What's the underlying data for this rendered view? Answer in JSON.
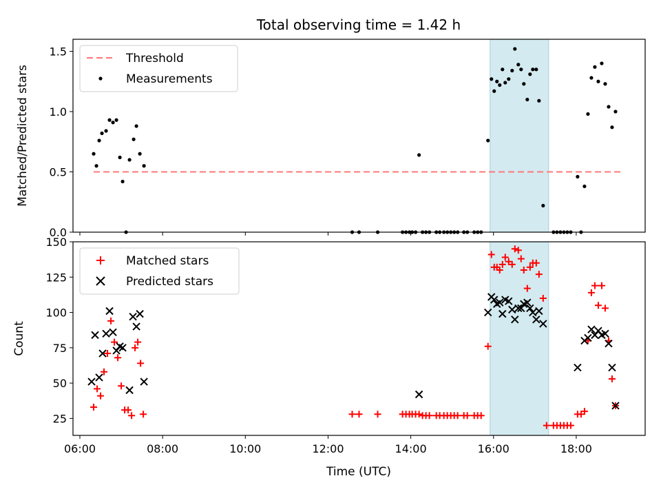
{
  "title": "Total observing time = 1.42 h",
  "xlabel": "Time (UTC)",
  "x_ticks": [
    "06:00",
    "08:00",
    "10:00",
    "12:00",
    "14:00",
    "16:00",
    "18:00"
  ],
  "colors": {
    "threshold": "#ff7777",
    "measurement": "#000000",
    "matched": "#ff0000",
    "predicted": "#000000",
    "highlight": "#d3eaf0"
  },
  "chart_data": [
    {
      "type": "scatter",
      "panel": "top",
      "ylabel": "Matched/Predicted stars",
      "ylim": [
        0,
        1.6
      ],
      "y_ticks": [
        "0.0",
        "0.5",
        "1.0",
        "1.5"
      ],
      "xlim": [
        "05:50",
        "19:40"
      ],
      "highlight_span": [
        "15:55",
        "17:20"
      ],
      "legend": {
        "position": "top-left",
        "entries": [
          "Threshold",
          "Measurements"
        ]
      },
      "threshold": {
        "name": "Threshold",
        "y": 0.5,
        "x_range": [
          "06:20",
          "19:05"
        ]
      },
      "series": [
        {
          "name": "Measurements",
          "points": [
            [
              "06:20",
              0.65
            ],
            [
              "06:24",
              0.55
            ],
            [
              "06:28",
              0.76
            ],
            [
              "06:32",
              0.82
            ],
            [
              "06:38",
              0.84
            ],
            [
              "06:43",
              0.93
            ],
            [
              "06:48",
              0.91
            ],
            [
              "06:53",
              0.93
            ],
            [
              "06:58",
              0.62
            ],
            [
              "07:02",
              0.42
            ],
            [
              "07:07",
              0.0
            ],
            [
              "07:12",
              0.6
            ],
            [
              "07:18",
              0.77
            ],
            [
              "07:22",
              0.88
            ],
            [
              "07:27",
              0.65
            ],
            [
              "07:33",
              0.55
            ],
            [
              "12:35",
              0.0
            ],
            [
              "12:45",
              0.0
            ],
            [
              "13:12",
              0.0
            ],
            [
              "13:48",
              0.0
            ],
            [
              "13:53",
              0.0
            ],
            [
              "13:58",
              0.0
            ],
            [
              "14:02",
              0.0
            ],
            [
              "14:07",
              0.0
            ],
            [
              "14:12",
              0.64
            ],
            [
              "14:17",
              0.0
            ],
            [
              "14:22",
              0.0
            ],
            [
              "14:27",
              0.0
            ],
            [
              "14:37",
              0.0
            ],
            [
              "14:42",
              0.0
            ],
            [
              "14:48",
              0.0
            ],
            [
              "14:53",
              0.0
            ],
            [
              "14:58",
              0.0
            ],
            [
              "15:03",
              0.0
            ],
            [
              "15:08",
              0.0
            ],
            [
              "15:17",
              0.0
            ],
            [
              "15:22",
              0.0
            ],
            [
              "15:32",
              0.0
            ],
            [
              "15:37",
              0.0
            ],
            [
              "15:42",
              0.0
            ],
            [
              "15:52",
              0.76
            ],
            [
              "15:57",
              1.27
            ],
            [
              "16:01",
              1.17
            ],
            [
              "16:05",
              1.25
            ],
            [
              "16:09",
              1.22
            ],
            [
              "16:13",
              1.35
            ],
            [
              "16:17",
              1.24
            ],
            [
              "16:22",
              1.27
            ],
            [
              "16:27",
              1.34
            ],
            [
              "16:31",
              1.52
            ],
            [
              "16:36",
              1.39
            ],
            [
              "16:40",
              1.35
            ],
            [
              "16:44",
              1.23
            ],
            [
              "16:49",
              1.1
            ],
            [
              "16:53",
              1.31
            ],
            [
              "16:57",
              1.35
            ],
            [
              "17:02",
              1.35
            ],
            [
              "17:06",
              1.09
            ],
            [
              "17:12",
              0.22
            ],
            [
              "17:27",
              0.0
            ],
            [
              "17:32",
              0.0
            ],
            [
              "17:37",
              0.0
            ],
            [
              "17:42",
              0.0
            ],
            [
              "17:47",
              0.0
            ],
            [
              "17:52",
              0.0
            ],
            [
              "18:02",
              0.46
            ],
            [
              "18:07",
              0.0
            ],
            [
              "18:12",
              0.38
            ],
            [
              "18:17",
              0.98
            ],
            [
              "18:22",
              1.28
            ],
            [
              "18:27",
              1.37
            ],
            [
              "18:32",
              1.25
            ],
            [
              "18:37",
              1.4
            ],
            [
              "18:42",
              1.23
            ],
            [
              "18:47",
              1.04
            ],
            [
              "18:52",
              0.87
            ],
            [
              "18:57",
              1.0
            ]
          ]
        }
      ]
    },
    {
      "type": "scatter",
      "panel": "bottom",
      "ylabel": "Count",
      "ylim": [
        13,
        150
      ],
      "y_ticks": [
        "25",
        "50",
        "75",
        "100",
        "125",
        "150"
      ],
      "xlim": [
        "05:50",
        "19:40"
      ],
      "highlight_span": [
        "15:55",
        "17:20"
      ],
      "legend": {
        "position": "top-left",
        "entries": [
          "Matched stars",
          "Predicted stars"
        ]
      },
      "series": [
        {
          "name": "Matched stars",
          "marker": "plus",
          "points": [
            [
              "06:20",
              33
            ],
            [
              "06:25",
              46
            ],
            [
              "06:30",
              41
            ],
            [
              "06:35",
              58
            ],
            [
              "06:40",
              71
            ],
            [
              "06:45",
              94
            ],
            [
              "06:50",
              79
            ],
            [
              "06:55",
              68
            ],
            [
              "07:00",
              48
            ],
            [
              "07:05",
              31
            ],
            [
              "07:10",
              31
            ],
            [
              "07:15",
              27
            ],
            [
              "07:20",
              75
            ],
            [
              "07:24",
              79
            ],
            [
              "07:28",
              64
            ],
            [
              "07:32",
              28
            ],
            [
              "12:35",
              28
            ],
            [
              "12:45",
              28
            ],
            [
              "13:12",
              28
            ],
            [
              "13:48",
              28
            ],
            [
              "13:53",
              28
            ],
            [
              "13:58",
              28
            ],
            [
              "14:02",
              28
            ],
            [
              "14:07",
              28
            ],
            [
              "14:12",
              28
            ],
            [
              "14:17",
              27
            ],
            [
              "14:22",
              27
            ],
            [
              "14:27",
              27
            ],
            [
              "14:37",
              27
            ],
            [
              "14:42",
              27
            ],
            [
              "14:48",
              27
            ],
            [
              "14:53",
              27
            ],
            [
              "14:58",
              27
            ],
            [
              "15:03",
              27
            ],
            [
              "15:08",
              27
            ],
            [
              "15:17",
              27
            ],
            [
              "15:22",
              27
            ],
            [
              "15:32",
              27
            ],
            [
              "15:37",
              27
            ],
            [
              "15:42",
              27
            ],
            [
              "15:52",
              76
            ],
            [
              "15:57",
              141
            ],
            [
              "16:01",
              132
            ],
            [
              "16:05",
              132
            ],
            [
              "16:09",
              130
            ],
            [
              "16:13",
              134
            ],
            [
              "16:17",
              139
            ],
            [
              "16:22",
              136
            ],
            [
              "16:27",
              134
            ],
            [
              "16:31",
              145
            ],
            [
              "16:36",
              144
            ],
            [
              "16:40",
              138
            ],
            [
              "16:44",
              130
            ],
            [
              "16:49",
              117
            ],
            [
              "16:53",
              132
            ],
            [
              "16:57",
              135
            ],
            [
              "17:02",
              135
            ],
            [
              "17:06",
              127
            ],
            [
              "17:12",
              110
            ],
            [
              "17:17",
              20
            ],
            [
              "17:27",
              20
            ],
            [
              "17:32",
              20
            ],
            [
              "17:37",
              20
            ],
            [
              "17:42",
              20
            ],
            [
              "17:47",
              20
            ],
            [
              "17:52",
              20
            ],
            [
              "18:02",
              28
            ],
            [
              "18:07",
              28
            ],
            [
              "18:12",
              30
            ],
            [
              "18:17",
              80
            ],
            [
              "18:22",
              114
            ],
            [
              "18:27",
              119
            ],
            [
              "18:32",
              105
            ],
            [
              "18:37",
              119
            ],
            [
              "18:42",
              103
            ],
            [
              "18:47",
              80
            ],
            [
              "18:52",
              53
            ],
            [
              "18:57",
              34
            ]
          ]
        },
        {
          "name": "Predicted stars",
          "marker": "x",
          "points": [
            [
              "06:17",
              51
            ],
            [
              "06:22",
              84
            ],
            [
              "06:28",
              54
            ],
            [
              "06:33",
              71
            ],
            [
              "06:38",
              85
            ],
            [
              "06:43",
              101
            ],
            [
              "06:48",
              86
            ],
            [
              "06:53",
              73
            ],
            [
              "06:58",
              76
            ],
            [
              "07:02",
              75
            ],
            [
              "07:12",
              45
            ],
            [
              "07:17",
              97
            ],
            [
              "07:22",
              90
            ],
            [
              "07:27",
              99
            ],
            [
              "07:33",
              51
            ],
            [
              "14:12",
              42
            ],
            [
              "15:52",
              100
            ],
            [
              "15:57",
              111
            ],
            [
              "16:01",
              109
            ],
            [
              "16:05",
              106
            ],
            [
              "16:09",
              107
            ],
            [
              "16:13",
              99
            ],
            [
              "16:17",
              109
            ],
            [
              "16:22",
              108
            ],
            [
              "16:27",
              102
            ],
            [
              "16:31",
              95
            ],
            [
              "16:36",
              103
            ],
            [
              "16:40",
              103
            ],
            [
              "16:44",
              106
            ],
            [
              "16:49",
              107
            ],
            [
              "16:53",
              103
            ],
            [
              "16:57",
              100
            ],
            [
              "17:02",
              95
            ],
            [
              "17:06",
              101
            ],
            [
              "17:12",
              92
            ],
            [
              "18:02",
              61
            ],
            [
              "18:12",
              80
            ],
            [
              "18:17",
              82
            ],
            [
              "18:22",
              88
            ],
            [
              "18:27",
              84
            ],
            [
              "18:32",
              87
            ],
            [
              "18:37",
              84
            ],
            [
              "18:42",
              85
            ],
            [
              "18:47",
              78
            ],
            [
              "18:52",
              61
            ],
            [
              "18:57",
              34
            ]
          ]
        }
      ]
    }
  ]
}
